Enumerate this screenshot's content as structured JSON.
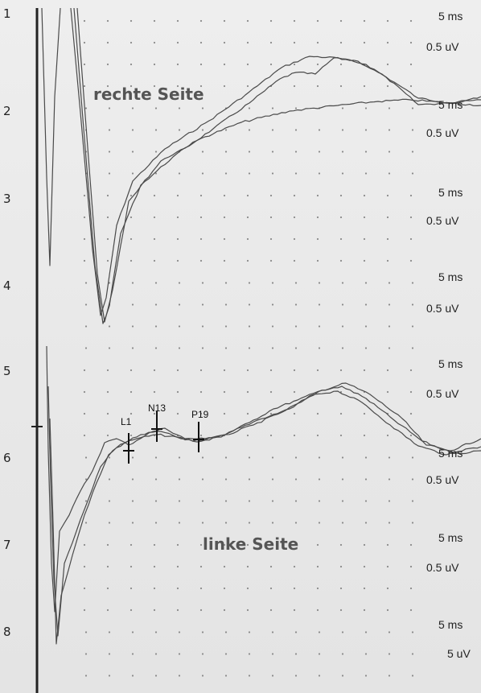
{
  "chart_data": {
    "type": "line",
    "title": "",
    "grid": true,
    "channels": [
      {
        "number": "1",
        "time_scale": "5 ms",
        "amplitude_scale": "0.5 uV"
      },
      {
        "number": "2",
        "time_scale": "5 ms",
        "amplitude_scale": "0.5 uV"
      },
      {
        "number": "3",
        "time_scale": "5 ms",
        "amplitude_scale": "0.5 uV"
      },
      {
        "number": "4",
        "time_scale": "5 ms",
        "amplitude_scale": "0.5 uV"
      },
      {
        "number": "5",
        "time_scale": "5 ms",
        "amplitude_scale": "0.5 uV"
      },
      {
        "number": "6",
        "time_scale": "5 ms",
        "amplitude_scale": "0.5 uV"
      },
      {
        "number": "7",
        "time_scale": "5 ms",
        "amplitude_scale": "0.5 uV"
      },
      {
        "number": "8",
        "time_scale": "5 ms",
        "amplitude_scale": "5 uV"
      }
    ],
    "groups": [
      {
        "label": "rechte Seite",
        "channel": "2"
      },
      {
        "label": "linke Seite",
        "channel": "7"
      }
    ],
    "markers": [
      {
        "label": "L1",
        "channel": "6"
      },
      {
        "label": "N13",
        "channel": "6"
      },
      {
        "label": "P19",
        "channel": "6"
      }
    ],
    "colors": {
      "background": "#ebebeb",
      "trace": "#4a4a4a",
      "axis": "#222222",
      "grid_dot": "#8a8a8a"
    }
  }
}
